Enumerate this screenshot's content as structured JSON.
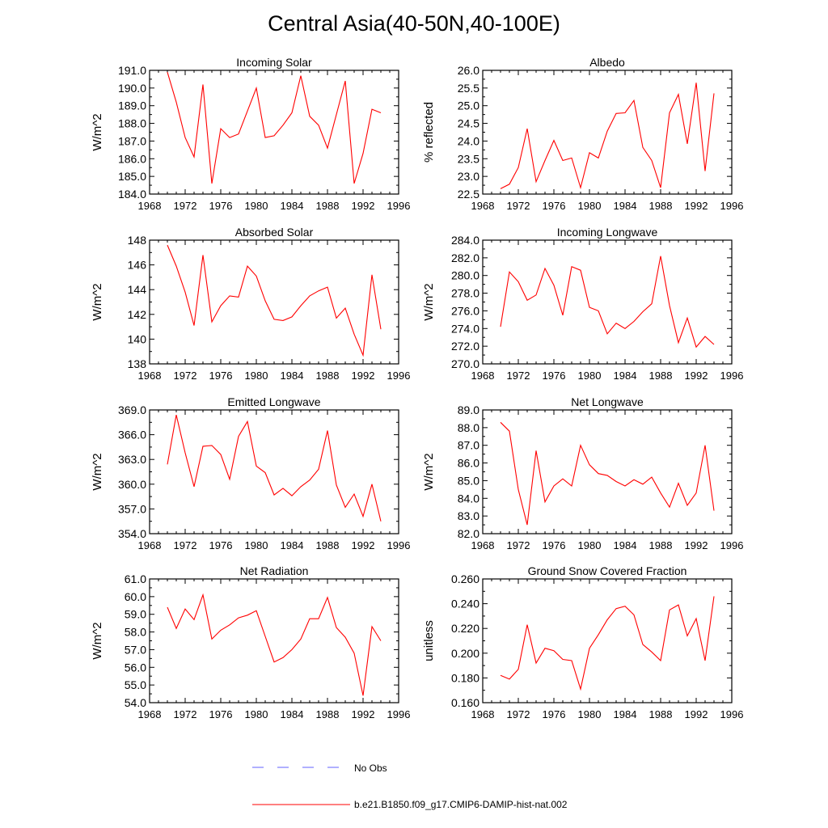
{
  "title": "Central Asia(40-50N,40-100E)",
  "colors": {
    "model": "#ff0000",
    "obs": "#6060ff",
    "axis": "#000000"
  },
  "legend": [
    {
      "label": "No Obs",
      "style": "dashed",
      "color": "#6060ff"
    },
    {
      "label": "b.e21.B1850.f09_g17.CMIP6-DAMIP-hist-nat.002",
      "style": "solid",
      "color": "#ff0000"
    }
  ],
  "chart_data": [
    {
      "type": "line",
      "title": "Incoming Solar",
      "ylabel": "W/m^2",
      "xlim": [
        1968,
        1996
      ],
      "ylim": [
        184.0,
        191.0
      ],
      "xticks": [
        "1968",
        "1972",
        "1976",
        "1980",
        "1984",
        "1988",
        "1992",
        "1996"
      ],
      "yticks": [
        "184.0",
        "185.0",
        "186.0",
        "187.0",
        "188.0",
        "189.0",
        "190.0",
        "191.0"
      ],
      "x": [
        1970,
        1971,
        1972,
        1973,
        1974,
        1975,
        1976,
        1977,
        1978,
        1979,
        1980,
        1981,
        1982,
        1983,
        1984,
        1985,
        1986,
        1987,
        1988,
        1989,
        1990,
        1991,
        1992,
        1993,
        1994
      ],
      "series": [
        {
          "values": [
            190.9,
            189.2,
            187.2,
            186.1,
            190.2,
            184.6,
            187.7,
            187.2,
            187.4,
            188.7,
            190.0,
            187.2,
            187.3,
            187.9,
            188.6,
            190.7,
            188.4,
            187.9,
            186.6,
            188.5,
            190.4,
            184.6,
            186.3,
            188.8,
            188.6
          ]
        }
      ]
    },
    {
      "type": "line",
      "title": "Albedo",
      "ylabel": "% reflected",
      "xlim": [
        1968,
        1996
      ],
      "ylim": [
        22.5,
        26.0
      ],
      "xticks": [
        "1968",
        "1972",
        "1976",
        "1980",
        "1984",
        "1988",
        "1992",
        "1996"
      ],
      "yticks": [
        "22.5",
        "23.0",
        "23.5",
        "24.0",
        "24.5",
        "25.0",
        "25.5",
        "26.0"
      ],
      "x": [
        1970,
        1971,
        1972,
        1973,
        1974,
        1975,
        1976,
        1977,
        1978,
        1979,
        1980,
        1981,
        1982,
        1983,
        1984,
        1985,
        1986,
        1987,
        1988,
        1989,
        1990,
        1991,
        1992,
        1993,
        1994
      ],
      "series": [
        {
          "values": [
            22.65,
            22.78,
            23.25,
            24.35,
            22.85,
            23.45,
            24.02,
            23.45,
            23.52,
            22.68,
            23.67,
            23.52,
            24.28,
            24.78,
            24.8,
            25.15,
            23.82,
            23.45,
            22.68,
            24.8,
            25.32,
            23.92,
            25.65,
            23.15,
            25.35
          ]
        }
      ]
    },
    {
      "type": "line",
      "title": "Absorbed Solar",
      "ylabel": "W/m^2",
      "xlim": [
        1968,
        1996
      ],
      "ylim": [
        138,
        148
      ],
      "xticks": [
        "1968",
        "1972",
        "1976",
        "1980",
        "1984",
        "1988",
        "1992",
        "1996"
      ],
      "yticks": [
        "138",
        "140",
        "142",
        "144",
        "146",
        "148"
      ],
      "x": [
        1970,
        1971,
        1972,
        1973,
        1974,
        1975,
        1976,
        1977,
        1978,
        1979,
        1980,
        1981,
        1982,
        1983,
        1984,
        1985,
        1986,
        1987,
        1988,
        1989,
        1990,
        1991,
        1992,
        1993,
        1994
      ],
      "series": [
        {
          "values": [
            147.6,
            145.9,
            143.8,
            141.1,
            146.8,
            141.4,
            142.7,
            143.5,
            143.4,
            145.9,
            145.1,
            143.1,
            141.6,
            141.5,
            141.8,
            142.7,
            143.5,
            143.9,
            144.2,
            141.7,
            142.5,
            140.4,
            138.7,
            145.2,
            140.8
          ]
        }
      ]
    },
    {
      "type": "line",
      "title": "Incoming Longwave",
      "ylabel": "W/m^2",
      "xlim": [
        1968,
        1996
      ],
      "ylim": [
        270.0,
        284.0
      ],
      "xticks": [
        "1968",
        "1972",
        "1976",
        "1980",
        "1984",
        "1988",
        "1992",
        "1996"
      ],
      "yticks": [
        "270.0",
        "272.0",
        "274.0",
        "276.0",
        "278.0",
        "280.0",
        "282.0",
        "284.0"
      ],
      "x": [
        1970,
        1971,
        1972,
        1973,
        1974,
        1975,
        1976,
        1977,
        1978,
        1979,
        1980,
        1981,
        1982,
        1983,
        1984,
        1985,
        1986,
        1987,
        1988,
        1989,
        1990,
        1991,
        1992,
        1993,
        1994
      ],
      "series": [
        {
          "values": [
            274.2,
            280.4,
            279.3,
            277.2,
            277.8,
            280.8,
            278.9,
            275.5,
            281.0,
            280.6,
            276.4,
            276.0,
            273.4,
            274.6,
            274.0,
            274.8,
            275.9,
            276.8,
            282.2,
            276.6,
            272.4,
            275.2,
            271.9,
            273.1,
            272.2
          ]
        }
      ]
    },
    {
      "type": "line",
      "title": "Emitted Longwave",
      "ylabel": "W/m^2",
      "xlim": [
        1968,
        1996
      ],
      "ylim": [
        354.0,
        369.0
      ],
      "xticks": [
        "1968",
        "1972",
        "1976",
        "1980",
        "1984",
        "1988",
        "1992",
        "1996"
      ],
      "yticks": [
        "354.0",
        "357.0",
        "360.0",
        "363.0",
        "366.0",
        "369.0"
      ],
      "x": [
        1970,
        1971,
        1972,
        1973,
        1974,
        1975,
        1976,
        1977,
        1978,
        1979,
        1980,
        1981,
        1982,
        1983,
        1984,
        1985,
        1986,
        1987,
        1988,
        1989,
        1990,
        1991,
        1992,
        1993,
        1994
      ],
      "series": [
        {
          "values": [
            362.4,
            368.4,
            363.8,
            359.7,
            364.6,
            364.7,
            363.6,
            360.6,
            365.8,
            367.6,
            362.2,
            361.4,
            358.7,
            359.5,
            358.6,
            359.7,
            360.5,
            361.8,
            366.5,
            359.9,
            357.2,
            358.8,
            356.1,
            360.0,
            355.5
          ]
        }
      ]
    },
    {
      "type": "line",
      "title": "Net Longwave",
      "ylabel": "W/m^2",
      "xlim": [
        1968,
        1996
      ],
      "ylim": [
        82.0,
        89.0
      ],
      "xticks": [
        "1968",
        "1972",
        "1976",
        "1980",
        "1984",
        "1988",
        "1992",
        "1996"
      ],
      "yticks": [
        "82.0",
        "83.0",
        "84.0",
        "85.0",
        "86.0",
        "87.0",
        "88.0",
        "89.0"
      ],
      "x": [
        1970,
        1971,
        1972,
        1973,
        1974,
        1975,
        1976,
        1977,
        1978,
        1979,
        1980,
        1981,
        1982,
        1983,
        1984,
        1985,
        1986,
        1987,
        1988,
        1989,
        1990,
        1991,
        1992,
        1993,
        1994
      ],
      "series": [
        {
          "values": [
            88.3,
            87.8,
            84.5,
            82.5,
            86.7,
            83.8,
            84.7,
            85.1,
            84.7,
            87.0,
            85.9,
            85.4,
            85.3,
            84.95,
            84.7,
            85.05,
            84.8,
            85.2,
            84.3,
            83.5,
            84.85,
            83.6,
            84.3,
            87.0,
            83.3
          ]
        }
      ]
    },
    {
      "type": "line",
      "title": "Net Radiation",
      "ylabel": "W/m^2",
      "xlim": [
        1968,
        1996
      ],
      "ylim": [
        54.0,
        61.0
      ],
      "xticks": [
        "1968",
        "1972",
        "1976",
        "1980",
        "1984",
        "1988",
        "1992",
        "1996"
      ],
      "yticks": [
        "54.0",
        "55.0",
        "56.0",
        "57.0",
        "58.0",
        "59.0",
        "60.0",
        "61.0"
      ],
      "x": [
        1970,
        1971,
        1972,
        1973,
        1974,
        1975,
        1976,
        1977,
        1978,
        1979,
        1980,
        1981,
        1982,
        1983,
        1984,
        1985,
        1986,
        1987,
        1988,
        1989,
        1990,
        1991,
        1992,
        1993,
        1994
      ],
      "series": [
        {
          "values": [
            59.4,
            58.2,
            59.3,
            58.7,
            60.1,
            57.6,
            58.1,
            58.4,
            58.8,
            58.95,
            59.2,
            57.75,
            56.3,
            56.55,
            57.0,
            57.6,
            58.75,
            58.75,
            59.95,
            58.25,
            57.7,
            56.8,
            54.4,
            58.3,
            57.5
          ]
        }
      ]
    },
    {
      "type": "line",
      "title": "Ground Snow Covered Fraction",
      "ylabel": "unitless",
      "xlim": [
        1968,
        1996
      ],
      "ylim": [
        0.16,
        0.26
      ],
      "xticks": [
        "1968",
        "1972",
        "1976",
        "1980",
        "1984",
        "1988",
        "1992",
        "1996"
      ],
      "yticks": [
        "0.160",
        "0.180",
        "0.200",
        "0.220",
        "0.240",
        "0.260"
      ],
      "x": [
        1970,
        1971,
        1972,
        1973,
        1974,
        1975,
        1976,
        1977,
        1978,
        1979,
        1980,
        1981,
        1982,
        1983,
        1984,
        1985,
        1986,
        1987,
        1988,
        1989,
        1990,
        1991,
        1992,
        1993,
        1994
      ],
      "series": [
        {
          "values": [
            0.182,
            0.179,
            0.187,
            0.223,
            0.192,
            0.204,
            0.202,
            0.195,
            0.194,
            0.171,
            0.204,
            0.215,
            0.227,
            0.236,
            0.238,
            0.231,
            0.207,
            0.201,
            0.194,
            0.235,
            0.239,
            0.214,
            0.228,
            0.194,
            0.246
          ]
        }
      ]
    }
  ]
}
